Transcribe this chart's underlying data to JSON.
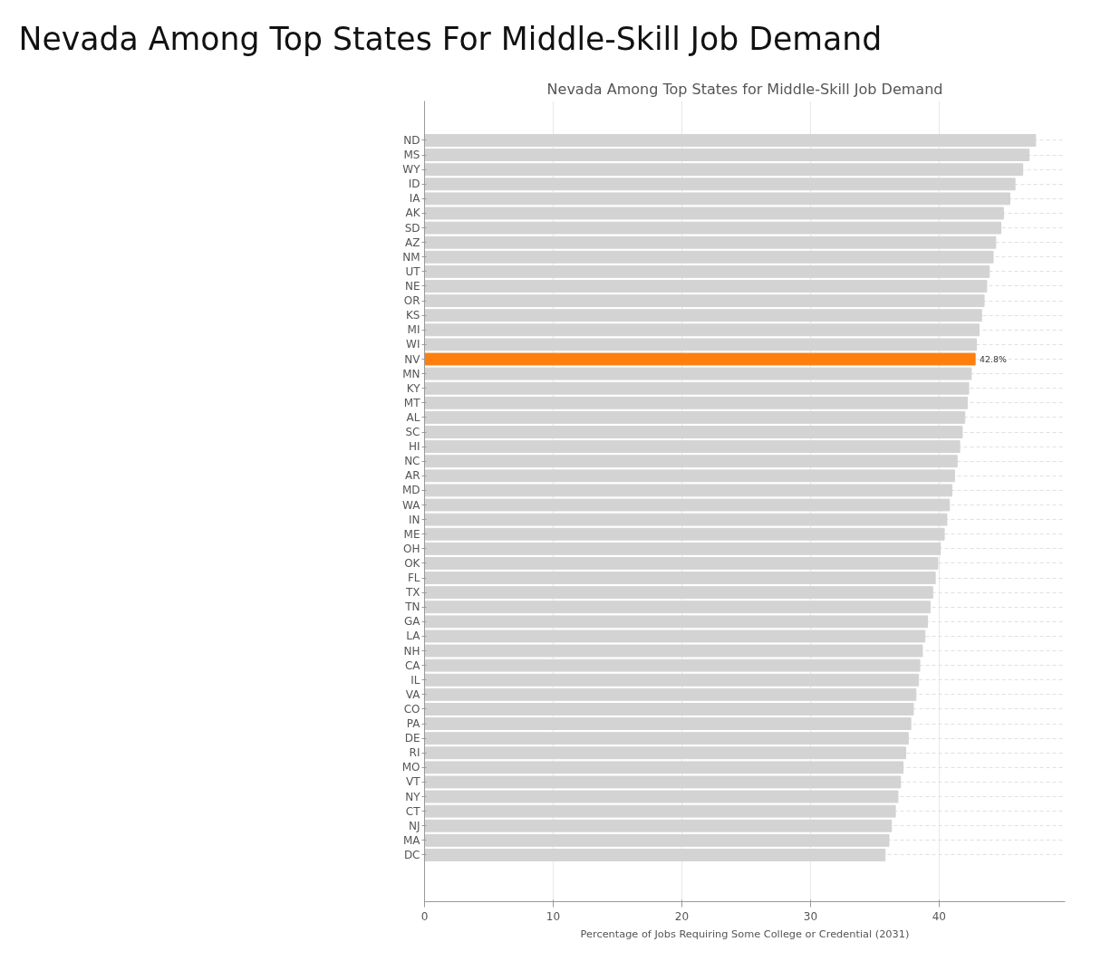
{
  "chart_data": {
    "type": "bar",
    "orientation": "horizontal",
    "title": "Nevada Among Top States For Middle-Skill Job Demand",
    "subtitle": "Nevada Among Top States for Middle-Skill Job Demand",
    "xlabel": "Percentage of Jobs Requiring Some College or Credential (2031)",
    "categories": [
      "ND",
      "MS",
      "WY",
      "ID",
      "IA",
      "AK",
      "SD",
      "AZ",
      "NM",
      "UT",
      "NE",
      "OR",
      "KS",
      "MI",
      "WI",
      "NV",
      "MN",
      "KY",
      "MT",
      "AL",
      "SC",
      "HI",
      "NC",
      "AR",
      "MD",
      "WA",
      "IN",
      "ME",
      "OH",
      "OK",
      "FL",
      "TX",
      "TN",
      "GA",
      "LA",
      "NH",
      "CA",
      "IL",
      "VA",
      "CO",
      "PA",
      "DE",
      "RI",
      "MO",
      "VT",
      "NY",
      "CT",
      "NJ",
      "MA",
      "DC"
    ],
    "values": [
      47.5,
      47.0,
      46.5,
      45.9,
      45.5,
      45.0,
      44.8,
      44.4,
      44.2,
      43.9,
      43.7,
      43.5,
      43.3,
      43.1,
      42.9,
      42.8,
      42.5,
      42.3,
      42.2,
      42.0,
      41.8,
      41.6,
      41.4,
      41.2,
      41.0,
      40.8,
      40.6,
      40.4,
      40.1,
      39.9,
      39.7,
      39.5,
      39.3,
      39.1,
      38.9,
      38.7,
      38.5,
      38.4,
      38.2,
      38.0,
      37.8,
      37.6,
      37.4,
      37.2,
      37.0,
      36.8,
      36.6,
      36.3,
      36.1,
      35.8
    ],
    "colors": [
      "#d3d3d3",
      "#d3d3d3",
      "#d3d3d3",
      "#d3d3d3",
      "#d3d3d3",
      "#d3d3d3",
      "#d3d3d3",
      "#d3d3d3",
      "#d3d3d3",
      "#d3d3d3",
      "#d3d3d3",
      "#d3d3d3",
      "#d3d3d3",
      "#d3d3d3",
      "#d3d3d3",
      "#ff7f0e",
      "#d3d3d3",
      "#d3d3d3",
      "#d3d3d3",
      "#d3d3d3",
      "#d3d3d3",
      "#d3d3d3",
      "#d3d3d3",
      "#d3d3d3",
      "#d3d3d3",
      "#d3d3d3",
      "#d3d3d3",
      "#d3d3d3",
      "#d3d3d3",
      "#d3d3d3",
      "#d3d3d3",
      "#d3d3d3",
      "#d3d3d3",
      "#d3d3d3",
      "#d3d3d3",
      "#d3d3d3",
      "#d3d3d3",
      "#d3d3d3",
      "#d3d3d3",
      "#d3d3d3",
      "#d3d3d3",
      "#d3d3d3",
      "#d3d3d3",
      "#d3d3d3",
      "#d3d3d3",
      "#d3d3d3",
      "#d3d3d3",
      "#d3d3d3",
      "#d3d3d3",
      "#d3d3d3"
    ],
    "value_labels": [
      null,
      null,
      null,
      null,
      null,
      null,
      null,
      null,
      null,
      null,
      null,
      null,
      null,
      null,
      null,
      "42.8%",
      null,
      null,
      null,
      null,
      null,
      null,
      null,
      null,
      null,
      null,
      null,
      null,
      null,
      null,
      null,
      null,
      null,
      null,
      null,
      null,
      null,
      null,
      null,
      null,
      null,
      null,
      null,
      null,
      null,
      null,
      null,
      null,
      null,
      null
    ],
    "xlim": [
      0,
      49.8
    ],
    "xticks": [
      0,
      10,
      20,
      30,
      40
    ],
    "grid": true
  }
}
